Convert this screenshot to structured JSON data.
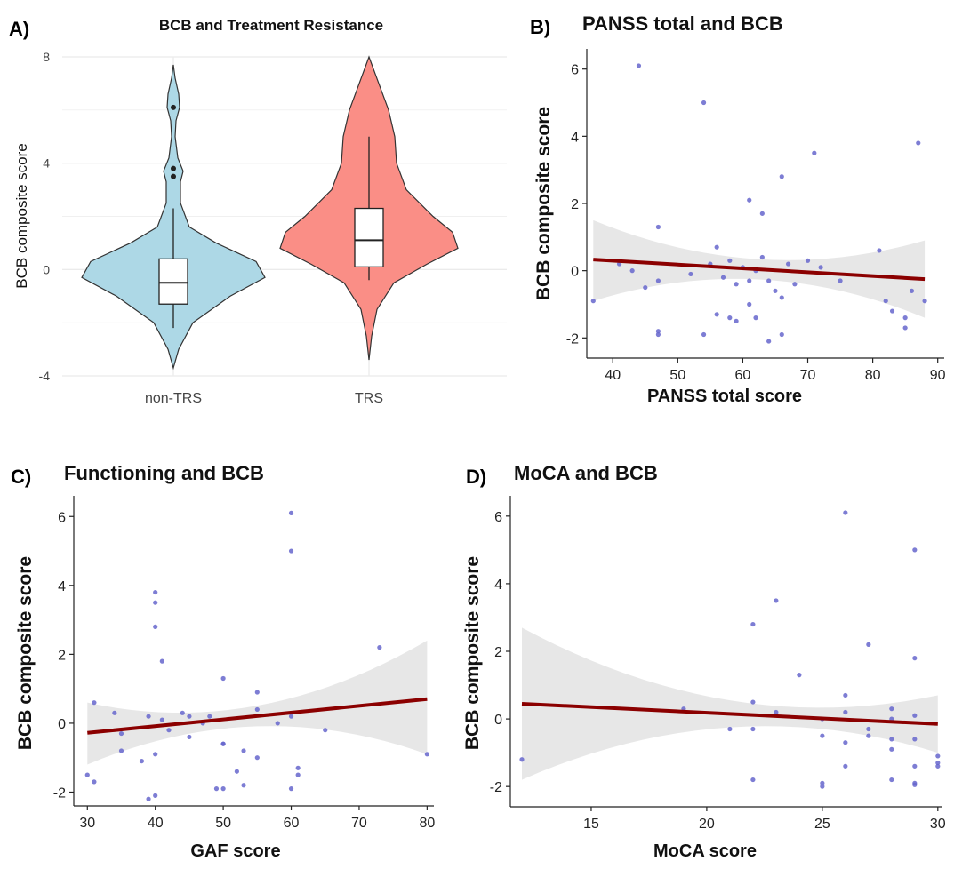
{
  "chart_data": [
    {
      "panel": "A)",
      "type": "violin",
      "title": "BCB and Treatment Resistance",
      "ylabel": "BCB composite score",
      "xlabel": "",
      "ylim": [
        -4,
        8
      ],
      "yticks": [
        -4,
        0,
        4,
        8
      ],
      "grid": true,
      "categories": [
        "non-TRS",
        "TRS"
      ],
      "colors": [
        "#ADD8E6",
        "#FA8E86"
      ],
      "groups": [
        {
          "name": "non-TRS",
          "min": -2.2,
          "q1": -1.3,
          "median": -0.5,
          "q3": 0.4,
          "whisker_high": 2.3,
          "outliers": [
            6.1,
            3.8,
            3.5
          ],
          "range": [
            -3.7,
            7.7
          ]
        },
        {
          "name": "TRS",
          "min": -0.4,
          "q1": 0.1,
          "median": 1.1,
          "q3": 2.3,
          "whisker_high": 5.0,
          "outliers": [],
          "range": [
            -3.4,
            8.0
          ]
        }
      ]
    },
    {
      "panel": "B)",
      "type": "scatter",
      "title": "PANSS total and BCB",
      "xlabel": "PANSS total score",
      "ylabel": "BCB composite score",
      "xlim": [
        36,
        91
      ],
      "ylim": [
        -2.6,
        6.6
      ],
      "xticks": [
        40,
        50,
        60,
        70,
        80,
        90
      ],
      "yticks": [
        -2,
        0,
        2,
        4,
        6
      ],
      "grid": false,
      "points": [
        [
          44,
          6.1
        ],
        [
          54,
          5.0
        ],
        [
          71,
          3.5
        ],
        [
          87,
          3.8
        ],
        [
          66,
          2.8
        ],
        [
          61,
          2.1
        ],
        [
          63,
          1.7
        ],
        [
          47,
          1.3
        ],
        [
          37,
          -0.9
        ],
        [
          41,
          0.2
        ],
        [
          43,
          0.0
        ],
        [
          45,
          -0.5
        ],
        [
          47,
          -0.3
        ],
        [
          52,
          -0.1
        ],
        [
          55,
          0.2
        ],
        [
          56,
          0.7
        ],
        [
          57,
          -0.2
        ],
        [
          58,
          0.3
        ],
        [
          59,
          -0.4
        ],
        [
          60,
          0.1
        ],
        [
          61,
          -0.3
        ],
        [
          62,
          0.0
        ],
        [
          63,
          0.4
        ],
        [
          64,
          -0.3
        ],
        [
          65,
          -0.6
        ],
        [
          66,
          -0.8
        ],
        [
          67,
          0.2
        ],
        [
          68,
          -0.4
        ],
        [
          70,
          0.3
        ],
        [
          72,
          0.1
        ],
        [
          75,
          -0.3
        ],
        [
          81,
          0.6
        ],
        [
          82,
          -0.9
        ],
        [
          83,
          -1.2
        ],
        [
          85,
          -1.4
        ],
        [
          85,
          -1.7
        ],
        [
          86,
          -0.6
        ],
        [
          88,
          -0.9
        ],
        [
          47,
          -1.8
        ],
        [
          47,
          -1.9
        ],
        [
          54,
          -1.9
        ],
        [
          56,
          -1.3
        ],
        [
          58,
          -1.4
        ],
        [
          59,
          -1.5
        ],
        [
          61,
          -1.0
        ],
        [
          64,
          -2.1
        ],
        [
          66,
          -1.9
        ],
        [
          62,
          -1.4
        ]
      ],
      "fit": {
        "x": [
          37,
          88
        ],
        "y": [
          0.33,
          -0.25
        ]
      },
      "band": {
        "lower": [
          -0.9,
          -1.4
        ],
        "upper": [
          1.5,
          0.9
        ],
        "mid_half_width": 0.3
      }
    },
    {
      "panel": "C)",
      "type": "scatter",
      "title": "Functioning and BCB",
      "xlabel": "GAF score",
      "ylabel": "BCB composite score",
      "xlim": [
        28,
        81
      ],
      "ylim": [
        -2.4,
        6.6
      ],
      "xticks": [
        30,
        40,
        50,
        60,
        70,
        80
      ],
      "yticks": [
        -2,
        0,
        2,
        4,
        6
      ],
      "grid": false,
      "points": [
        [
          60,
          6.1
        ],
        [
          60,
          5.0
        ],
        [
          40,
          3.8
        ],
        [
          40,
          3.5
        ],
        [
          40,
          2.8
        ],
        [
          41,
          1.8
        ],
        [
          73,
          2.2
        ],
        [
          50,
          1.3
        ],
        [
          55,
          0.9
        ],
        [
          31,
          0.6
        ],
        [
          34,
          0.3
        ],
        [
          35,
          -0.3
        ],
        [
          38,
          -1.1
        ],
        [
          39,
          0.2
        ],
        [
          40,
          -0.9
        ],
        [
          41,
          0.1
        ],
        [
          42,
          -0.2
        ],
        [
          44,
          0.3
        ],
        [
          45,
          -0.4
        ],
        [
          47,
          0.0
        ],
        [
          48,
          0.2
        ],
        [
          50,
          -0.6
        ],
        [
          52,
          -1.4
        ],
        [
          53,
          -0.8
        ],
        [
          55,
          -1.0
        ],
        [
          55,
          0.4
        ],
        [
          58,
          0.0
        ],
        [
          60,
          0.2
        ],
        [
          61,
          -1.3
        ],
        [
          61,
          -1.5
        ],
        [
          65,
          -0.2
        ],
        [
          80,
          -0.9
        ],
        [
          30,
          -1.5
        ],
        [
          31,
          -1.7
        ],
        [
          35,
          -0.8
        ],
        [
          39,
          -2.2
        ],
        [
          40,
          -2.1
        ],
        [
          49,
          -1.9
        ],
        [
          50,
          -1.9
        ],
        [
          53,
          -1.8
        ],
        [
          60,
          -1.9
        ],
        [
          45,
          0.2
        ],
        [
          50,
          -0.6
        ]
      ],
      "fit": {
        "x": [
          30,
          80
        ],
        "y": [
          -0.28,
          0.7
        ]
      },
      "band": {
        "lower": [
          -1.2,
          -0.9
        ],
        "upper": [
          0.6,
          2.4
        ],
        "mid_half_width": 0.3
      }
    },
    {
      "panel": "D)",
      "type": "scatter",
      "title": "MoCA and BCB",
      "xlabel": "MoCA score",
      "ylabel": "BCB composite score",
      "xlim": [
        11.5,
        30.2
      ],
      "ylim": [
        -2.6,
        6.6
      ],
      "xticks": [
        15,
        20,
        25,
        30
      ],
      "yticks": [
        -2,
        0,
        2,
        4,
        6
      ],
      "grid": false,
      "points": [
        [
          26,
          6.1
        ],
        [
          29,
          5.0
        ],
        [
          23,
          3.5
        ],
        [
          22,
          2.8
        ],
        [
          27,
          2.2
        ],
        [
          29,
          1.8
        ],
        [
          24,
          1.3
        ],
        [
          26,
          0.7
        ],
        [
          12,
          -1.2
        ],
        [
          19,
          0.3
        ],
        [
          21,
          -0.3
        ],
        [
          22,
          0.5
        ],
        [
          22,
          -0.3
        ],
        [
          23,
          0.2
        ],
        [
          25,
          0.0
        ],
        [
          25,
          -0.5
        ],
        [
          26,
          0.2
        ],
        [
          26,
          -0.7
        ],
        [
          27,
          -0.3
        ],
        [
          27,
          -0.5
        ],
        [
          28,
          0.3
        ],
        [
          28,
          -0.6
        ],
        [
          28,
          0.0
        ],
        [
          29,
          0.1
        ],
        [
          29,
          -0.6
        ],
        [
          30,
          -1.1
        ],
        [
          30,
          -1.3
        ],
        [
          30,
          -1.4
        ],
        [
          22,
          -1.8
        ],
        [
          25,
          -1.9
        ],
        [
          25,
          -2.0
        ],
        [
          26,
          -1.4
        ],
        [
          28,
          -0.9
        ],
        [
          28,
          -1.8
        ],
        [
          29,
          -1.4
        ],
        [
          29,
          -1.9
        ],
        [
          29,
          -1.95
        ]
      ],
      "fit": {
        "x": [
          12,
          30
        ],
        "y": [
          0.45,
          -0.15
        ]
      },
      "band": {
        "lower": [
          -1.8,
          -1.0
        ],
        "upper": [
          2.7,
          0.7
        ],
        "mid_half_width": 0.4
      }
    }
  ],
  "style": {
    "point_color": "#6666CC",
    "fit_color": "#8B0000",
    "band_color": "#E3E3E3",
    "grid_color": "#EBEBEB",
    "outline_color": "#333333"
  }
}
